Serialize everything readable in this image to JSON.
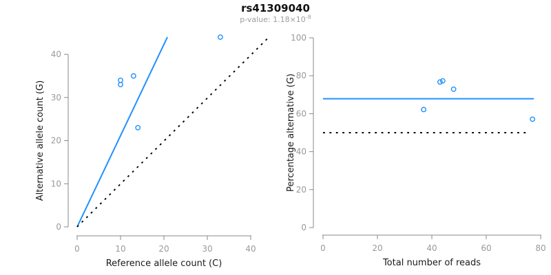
{
  "colors": {
    "accent_blue": "#1E90FF",
    "dotted_black": "#000000",
    "axis_gray": "#888888",
    "tick_label_gray": "#999999",
    "label_black": "#1a1a1a"
  },
  "chart_data": {
    "title": "rs41309040",
    "subtitle_prefix": "p-value: 1.18×10",
    "subtitle_exponent": "-8",
    "charts": [
      {
        "name": "allele-counts-scatter",
        "type": "scatter",
        "xlabel": "Reference allele count (C)",
        "ylabel": "Alternative allele count (G)",
        "xlim": [
          0,
          44
        ],
        "ylim": [
          0,
          44
        ],
        "xticks": [
          0,
          10,
          20,
          30,
          40
        ],
        "yticks": [
          0,
          10,
          20,
          30,
          40
        ],
        "grid": false,
        "points": [
          {
            "x": 10,
            "y": 34
          },
          {
            "x": 10,
            "y": 33
          },
          {
            "x": 13,
            "y": 35
          },
          {
            "x": 14,
            "y": 23
          },
          {
            "x": 33,
            "y": 44
          }
        ],
        "lines": [
          {
            "name": "fit-line",
            "style": "solid",
            "color": "#1E90FF",
            "x1": 0,
            "y1": 0,
            "x2": 20.8,
            "y2": 44
          },
          {
            "name": "identity-line",
            "style": "dotted",
            "color": "#000000",
            "x1": 0,
            "y1": 0,
            "x2": 43.8,
            "y2": 43.6
          }
        ]
      },
      {
        "name": "percentage-vs-reads-scatter",
        "type": "scatter",
        "xlabel": "Total number of reads",
        "ylabel": "Percentage alternative (G)",
        "xlim": [
          0,
          81
        ],
        "ylim": [
          0,
          100
        ],
        "xticks": [
          0,
          20,
          40,
          60,
          80
        ],
        "yticks": [
          0,
          20,
          40,
          60,
          80,
          100
        ],
        "grid": false,
        "points": [
          {
            "x": 37,
            "y": 62.2
          },
          {
            "x": 43,
            "y": 76.7
          },
          {
            "x": 44,
            "y": 77.3
          },
          {
            "x": 48,
            "y": 72.9
          },
          {
            "x": 77,
            "y": 57.1
          }
        ],
        "lines": [
          {
            "name": "mean-percentage-line",
            "style": "solid",
            "color": "#1E90FF",
            "x1": 0,
            "y1": 67.9,
            "x2": 77.5,
            "y2": 67.9
          },
          {
            "name": "expected-50pct-line",
            "style": "dotted",
            "color": "#000000",
            "x1": 0,
            "y1": 50,
            "x2": 75.5,
            "y2": 50
          }
        ]
      }
    ]
  }
}
